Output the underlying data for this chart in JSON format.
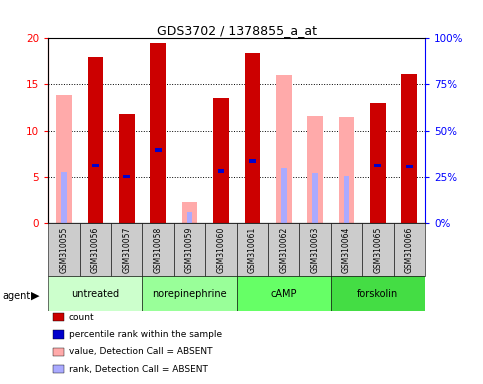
{
  "title": "GDS3702 / 1378855_a_at",
  "samples": [
    "GSM310055",
    "GSM310056",
    "GSM310057",
    "GSM310058",
    "GSM310059",
    "GSM310060",
    "GSM310061",
    "GSM310062",
    "GSM310063",
    "GSM310064",
    "GSM310065",
    "GSM310066"
  ],
  "groups": [
    {
      "label": "untreated",
      "color": "#ccffcc",
      "indices": [
        0,
        1,
        2
      ]
    },
    {
      "label": "norepinephrine",
      "color": "#99ff99",
      "indices": [
        3,
        4,
        5
      ]
    },
    {
      "label": "cAMP",
      "color": "#66ff66",
      "indices": [
        6,
        7,
        8
      ]
    },
    {
      "label": "forskolin",
      "color": "#44dd44",
      "indices": [
        9,
        10,
        11
      ]
    }
  ],
  "count_values": [
    null,
    18.0,
    11.8,
    19.5,
    null,
    13.5,
    18.4,
    null,
    null,
    null,
    13.0,
    16.1
  ],
  "value_absent": [
    13.9,
    null,
    null,
    null,
    2.2,
    null,
    null,
    16.0,
    11.6,
    11.5,
    null,
    null
  ],
  "rank_present": [
    null,
    31.0,
    25.0,
    39.5,
    null,
    28.0,
    33.5,
    null,
    null,
    null,
    31.0,
    30.5
  ],
  "rank_absent": [
    27.5,
    null,
    null,
    null,
    6.0,
    null,
    null,
    29.5,
    27.0,
    25.5,
    null,
    null
  ],
  "ylim_left": [
    0,
    20
  ],
  "ylim_right": [
    0,
    100
  ],
  "yticks_left": [
    0,
    5,
    10,
    15,
    20
  ],
  "yticks_right": [
    0,
    25,
    50,
    75,
    100
  ],
  "color_count": "#cc0000",
  "color_rank_present": "#0000cc",
  "color_value_absent": "#ffaaaa",
  "color_rank_absent": "#aaaaff",
  "legend_items": [
    {
      "color": "#cc0000",
      "label": "count"
    },
    {
      "color": "#0000cc",
      "label": "percentile rank within the sample"
    },
    {
      "color": "#ffaaaa",
      "label": "value, Detection Call = ABSENT"
    },
    {
      "color": "#aaaaff",
      "label": "rank, Detection Call = ABSENT"
    }
  ]
}
